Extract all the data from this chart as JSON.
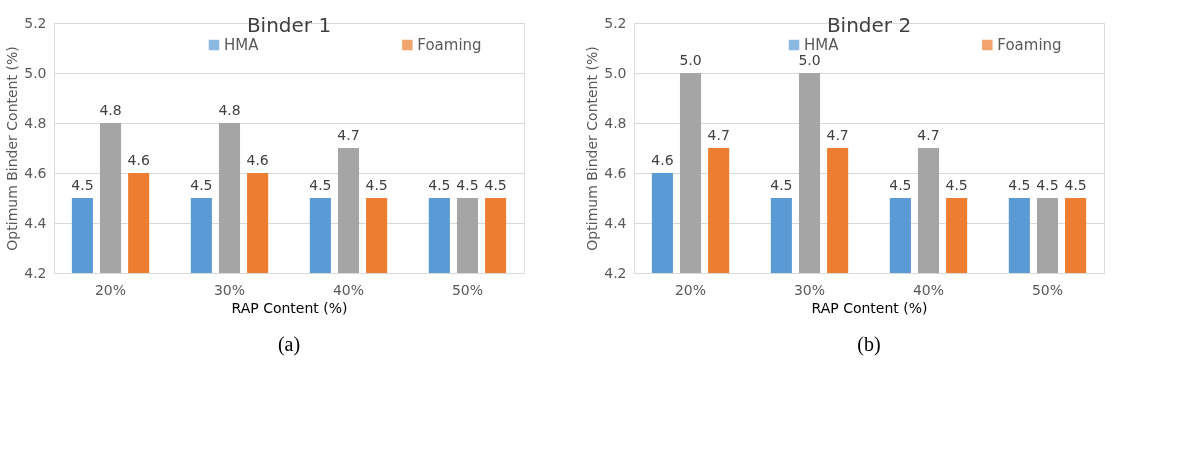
{
  "chart_data": [
    {
      "type": "bar",
      "title": "Binder 1",
      "xlabel": "RAP Content (%)",
      "ylabel": "Optimum Binder Content (%)",
      "categories": [
        "20%",
        "30%",
        "40%",
        "50%"
      ],
      "series": [
        {
          "name": "HMA",
          "color": "#5b9bd5",
          "values": [
            4.5,
            4.5,
            4.5,
            4.5
          ],
          "value_labels": [
            "4.5",
            "4.5",
            "4.5",
            "4.5"
          ]
        },
        {
          "color": "#a5a5a5",
          "values": [
            4.8,
            4.8,
            4.7,
            4.5
          ],
          "value_labels": [
            "4.8",
            "4.8",
            "4.7",
            "4.5"
          ]
        },
        {
          "name": "Foaming",
          "color": "#ed7d31",
          "values": [
            4.6,
            4.6,
            4.5,
            4.5
          ],
          "value_labels": [
            "4.6",
            "4.6",
            "4.5",
            "4.5"
          ]
        }
      ],
      "ylim": [
        4.2,
        5.2
      ],
      "yticks": [
        4.2,
        4.4,
        4.6,
        4.8,
        {
          "value": 5,
          "label": "5.0"
        },
        5.2
      ],
      "grid": "y",
      "legend": "top right",
      "annotations": [
        "(a)"
      ]
    },
    {
      "type": "bar",
      "title": "Binder 2",
      "xlabel": "RAP Content (%)",
      "ylabel": "Optimum Binder Content (%)",
      "categories": [
        "20%",
        "30%",
        "40%",
        "50%"
      ],
      "series": [
        {
          "name": "HMA",
          "color": "#5b9bd5",
          "values": [
            4.6,
            4.5,
            4.5,
            4.5
          ],
          "value_labels": [
            "4.6",
            "4.5",
            "4.5",
            "4.5"
          ]
        },
        {
          "color": "#a5a5a5",
          "values": [
            5,
            5,
            4.7,
            4.5
          ],
          "value_labels": [
            "5.0",
            "5.0",
            "4.7",
            "4.5"
          ]
        },
        {
          "name": "Foaming",
          "color": "#ed7d31",
          "values": [
            4.7,
            4.7,
            4.5,
            4.5
          ],
          "value_labels": [
            "4.7",
            "4.7",
            "4.5",
            "4.5"
          ]
        }
      ],
      "ylim": [
        4.2,
        5.2
      ],
      "yticks": [
        4.2,
        4.4,
        4.6,
        4.8,
        {
          "value": 5,
          "label": "5.0"
        },
        5.2
      ],
      "grid": "y",
      "legend": "top right",
      "annotations": [
        "(b)"
      ]
    }
  ]
}
